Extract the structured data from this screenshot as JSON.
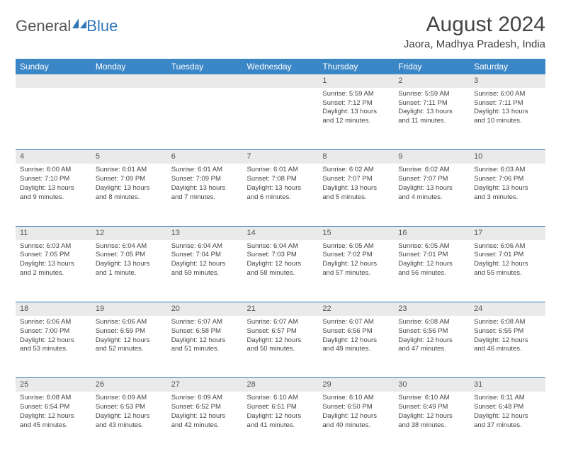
{
  "brand": {
    "part1": "General",
    "part2": "Blue"
  },
  "title": "August 2024",
  "location": "Jaora, Madhya Pradesh, India",
  "colors": {
    "header_bg": "#3b86c6",
    "row_divider": "#2f77b6",
    "daynum_bg": "#eaeaea",
    "text": "#444444"
  },
  "day_headers": [
    "Sunday",
    "Monday",
    "Tuesday",
    "Wednesday",
    "Thursday",
    "Friday",
    "Saturday"
  ],
  "weeks": [
    [
      null,
      null,
      null,
      null,
      {
        "n": "1",
        "sr": "5:59 AM",
        "ss": "7:12 PM",
        "dl": "13 hours and 12 minutes."
      },
      {
        "n": "2",
        "sr": "5:59 AM",
        "ss": "7:11 PM",
        "dl": "13 hours and 11 minutes."
      },
      {
        "n": "3",
        "sr": "6:00 AM",
        "ss": "7:11 PM",
        "dl": "13 hours and 10 minutes."
      }
    ],
    [
      {
        "n": "4",
        "sr": "6:00 AM",
        "ss": "7:10 PM",
        "dl": "13 hours and 9 minutes."
      },
      {
        "n": "5",
        "sr": "6:01 AM",
        "ss": "7:09 PM",
        "dl": "13 hours and 8 minutes."
      },
      {
        "n": "6",
        "sr": "6:01 AM",
        "ss": "7:09 PM",
        "dl": "13 hours and 7 minutes."
      },
      {
        "n": "7",
        "sr": "6:01 AM",
        "ss": "7:08 PM",
        "dl": "13 hours and 6 minutes."
      },
      {
        "n": "8",
        "sr": "6:02 AM",
        "ss": "7:07 PM",
        "dl": "13 hours and 5 minutes."
      },
      {
        "n": "9",
        "sr": "6:02 AM",
        "ss": "7:07 PM",
        "dl": "13 hours and 4 minutes."
      },
      {
        "n": "10",
        "sr": "6:03 AM",
        "ss": "7:06 PM",
        "dl": "13 hours and 3 minutes."
      }
    ],
    [
      {
        "n": "11",
        "sr": "6:03 AM",
        "ss": "7:05 PM",
        "dl": "13 hours and 2 minutes."
      },
      {
        "n": "12",
        "sr": "6:04 AM",
        "ss": "7:05 PM",
        "dl": "13 hours and 1 minute."
      },
      {
        "n": "13",
        "sr": "6:04 AM",
        "ss": "7:04 PM",
        "dl": "12 hours and 59 minutes."
      },
      {
        "n": "14",
        "sr": "6:04 AM",
        "ss": "7:03 PM",
        "dl": "12 hours and 58 minutes."
      },
      {
        "n": "15",
        "sr": "6:05 AM",
        "ss": "7:02 PM",
        "dl": "12 hours and 57 minutes."
      },
      {
        "n": "16",
        "sr": "6:05 AM",
        "ss": "7:01 PM",
        "dl": "12 hours and 56 minutes."
      },
      {
        "n": "17",
        "sr": "6:06 AM",
        "ss": "7:01 PM",
        "dl": "12 hours and 55 minutes."
      }
    ],
    [
      {
        "n": "18",
        "sr": "6:06 AM",
        "ss": "7:00 PM",
        "dl": "12 hours and 53 minutes."
      },
      {
        "n": "19",
        "sr": "6:06 AM",
        "ss": "6:59 PM",
        "dl": "12 hours and 52 minutes."
      },
      {
        "n": "20",
        "sr": "6:07 AM",
        "ss": "6:58 PM",
        "dl": "12 hours and 51 minutes."
      },
      {
        "n": "21",
        "sr": "6:07 AM",
        "ss": "6:57 PM",
        "dl": "12 hours and 50 minutes."
      },
      {
        "n": "22",
        "sr": "6:07 AM",
        "ss": "6:56 PM",
        "dl": "12 hours and 48 minutes."
      },
      {
        "n": "23",
        "sr": "6:08 AM",
        "ss": "6:56 PM",
        "dl": "12 hours and 47 minutes."
      },
      {
        "n": "24",
        "sr": "6:08 AM",
        "ss": "6:55 PM",
        "dl": "12 hours and 46 minutes."
      }
    ],
    [
      {
        "n": "25",
        "sr": "6:08 AM",
        "ss": "6:54 PM",
        "dl": "12 hours and 45 minutes."
      },
      {
        "n": "26",
        "sr": "6:09 AM",
        "ss": "6:53 PM",
        "dl": "12 hours and 43 minutes."
      },
      {
        "n": "27",
        "sr": "6:09 AM",
        "ss": "6:52 PM",
        "dl": "12 hours and 42 minutes."
      },
      {
        "n": "28",
        "sr": "6:10 AM",
        "ss": "6:51 PM",
        "dl": "12 hours and 41 minutes."
      },
      {
        "n": "29",
        "sr": "6:10 AM",
        "ss": "6:50 PM",
        "dl": "12 hours and 40 minutes."
      },
      {
        "n": "30",
        "sr": "6:10 AM",
        "ss": "6:49 PM",
        "dl": "12 hours and 38 minutes."
      },
      {
        "n": "31",
        "sr": "6:11 AM",
        "ss": "6:48 PM",
        "dl": "12 hours and 37 minutes."
      }
    ]
  ],
  "labels": {
    "sunrise": "Sunrise: ",
    "sunset": "Sunset: ",
    "daylight": "Daylight: "
  }
}
